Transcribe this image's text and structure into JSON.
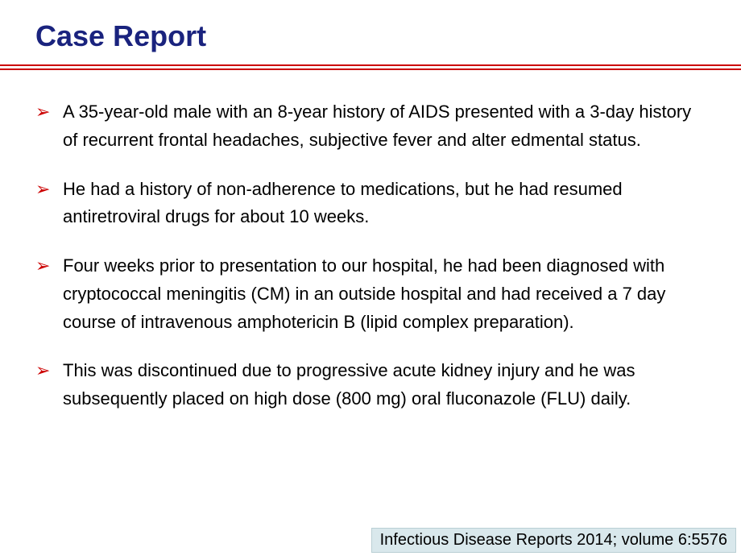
{
  "title": "Case Report",
  "colors": {
    "title_color": "#1a237e",
    "divider_color": "#cc0000",
    "bullet_arrow_color": "#cc0000",
    "text_color": "#000000",
    "background": "#ffffff",
    "citation_bg": "#d9e8ec",
    "citation_border": "#b9cfd4"
  },
  "typography": {
    "title_fontsize": 36,
    "title_weight": "bold",
    "body_fontsize": 22,
    "body_line_height": 1.58,
    "citation_fontsize": 20
  },
  "bullet_marker": "➢",
  "bullets": [
    "A 35-year-old male with an 8-year history of AIDS presented with a 3-day history of recurrent frontal headaches, subjective fever and alter edmental status.",
    "He had a history of non-adherence to medications, but he had resumed antiretroviral drugs for about 10 weeks.",
    "Four weeks prior to presentation to our hospital, he had been diagnosed with cryptococcal meningitis (CM) in an outside hospital and had received a 7 day course of intravenous amphotericin B (lipid complex preparation).",
    "This was discontinued due to progressive acute kidney injury and he was subsequently placed on high dose (800 mg) oral fluconazole (FLU) daily."
  ],
  "citation": "Infectious Disease Reports 2014; volume 6:5576"
}
